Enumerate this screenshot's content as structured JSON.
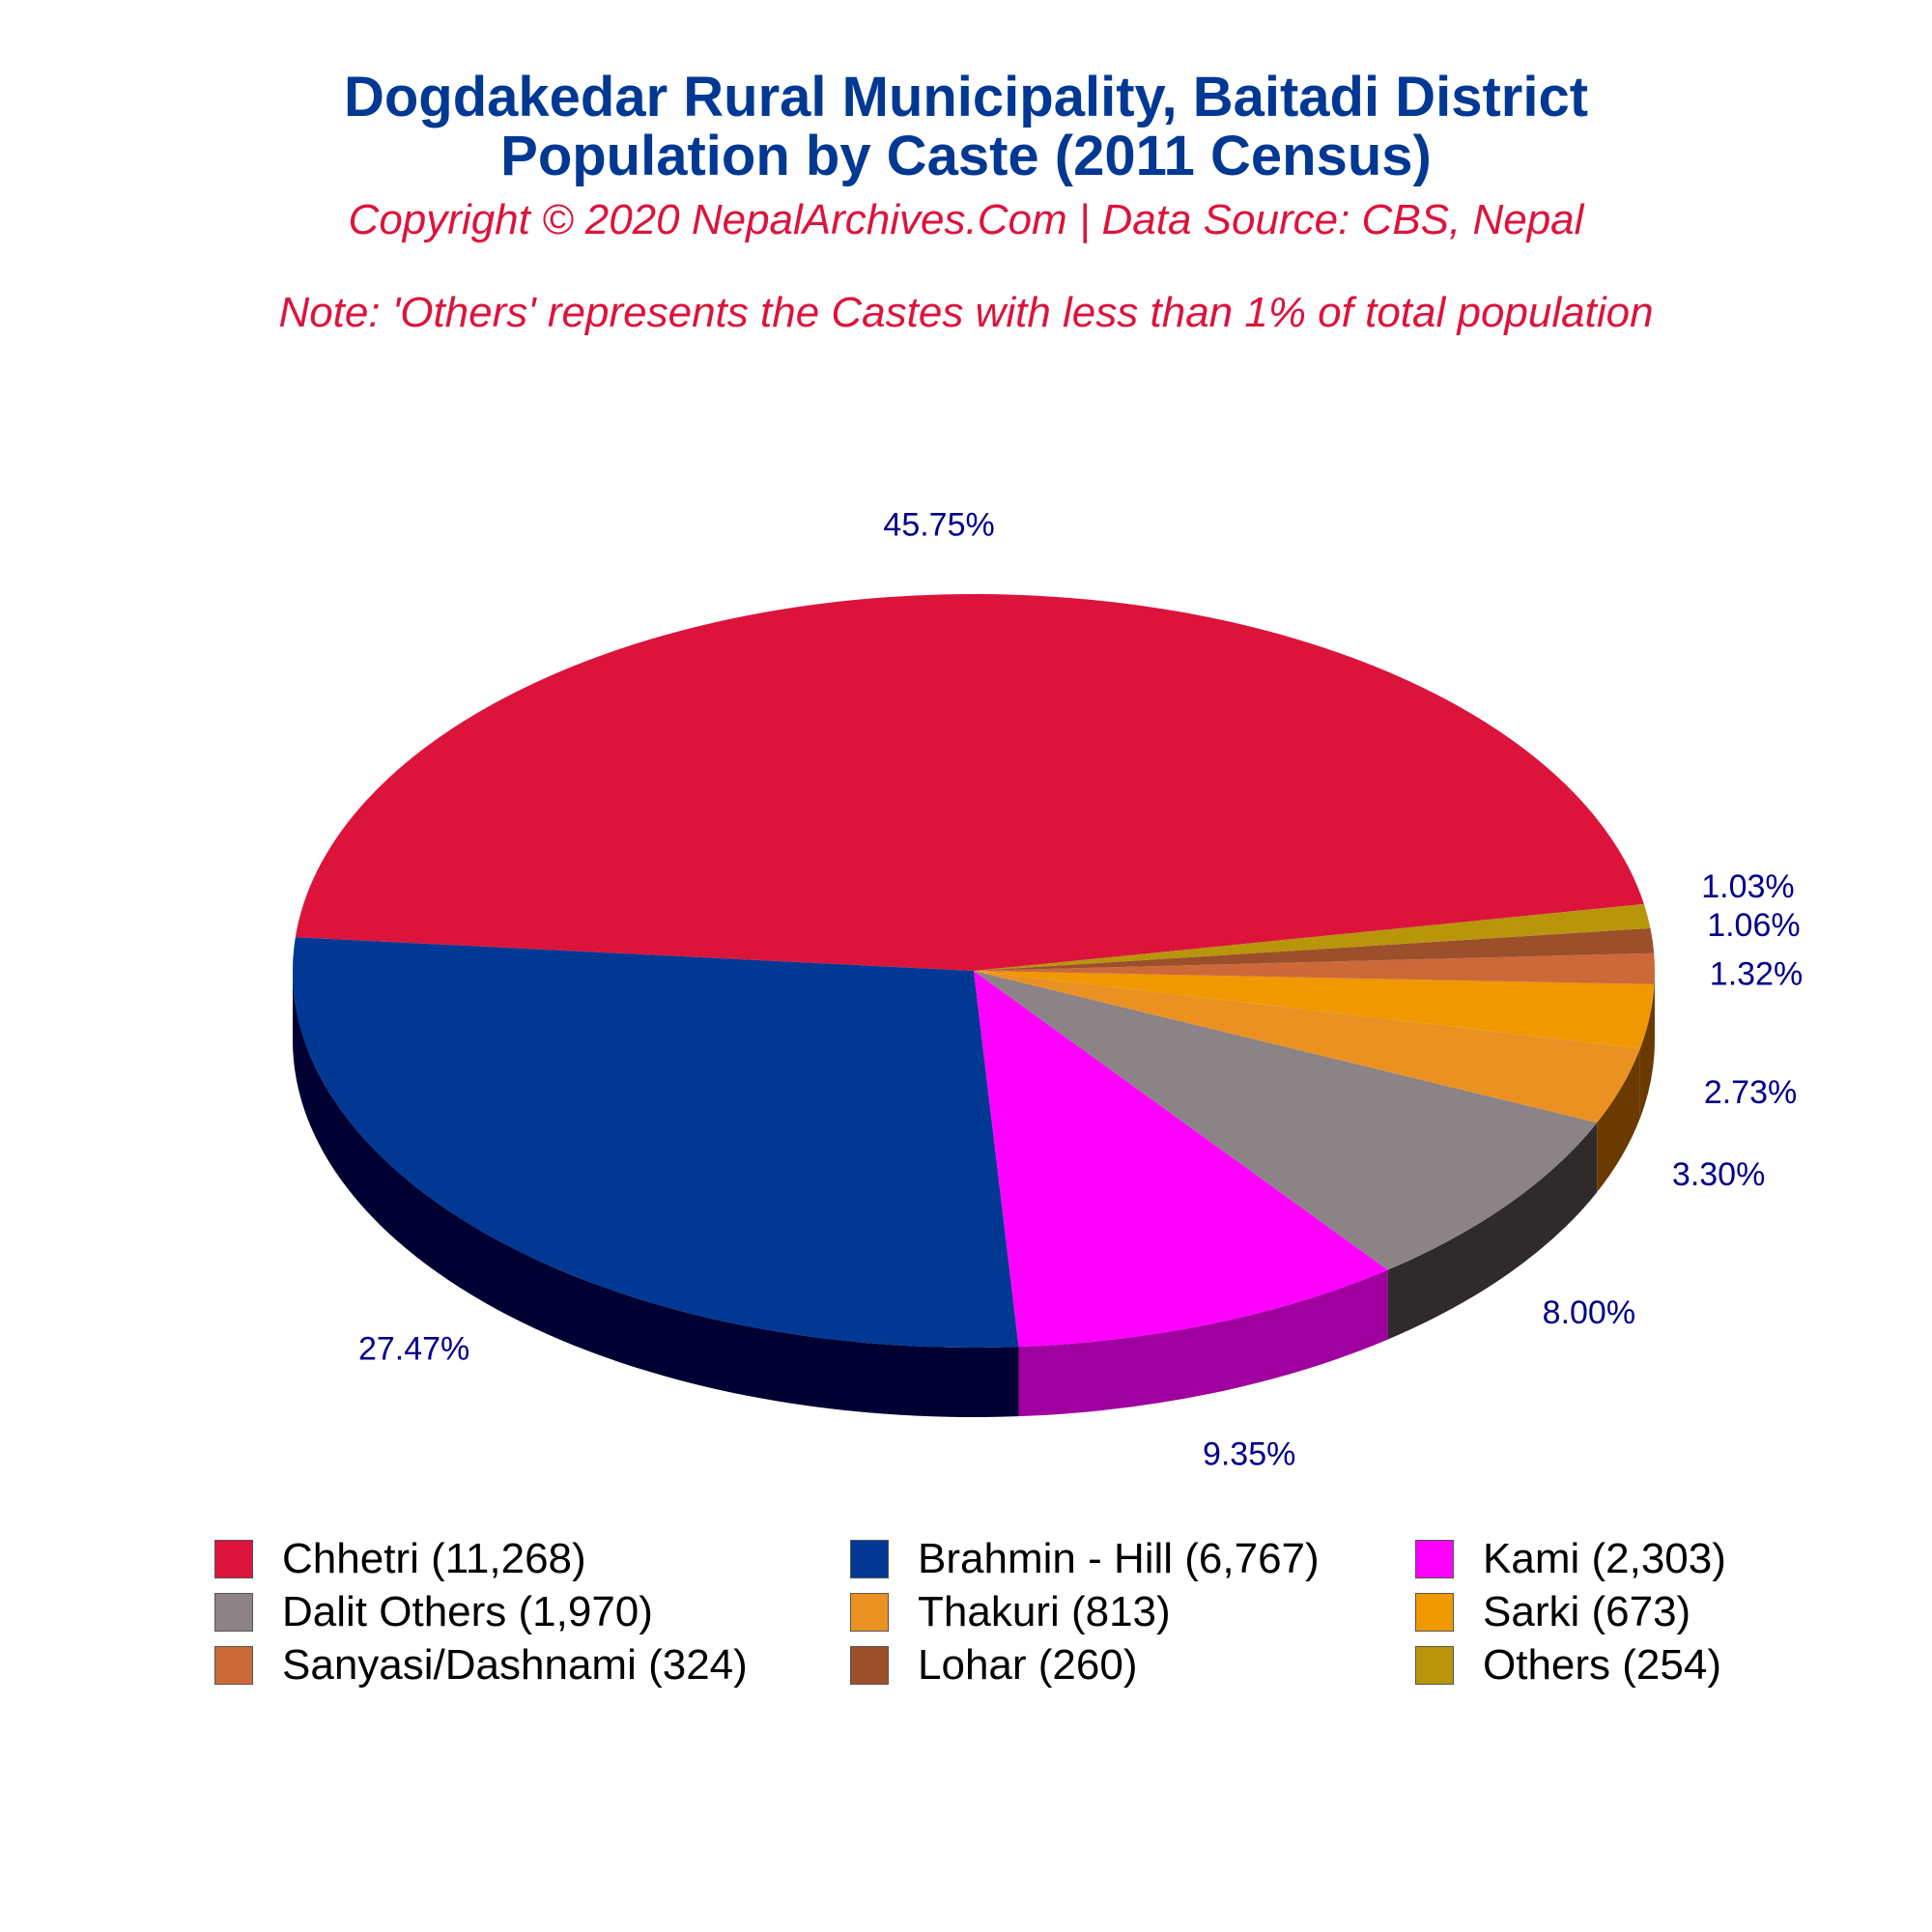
{
  "title_line1": "Dogdakedar Rural Municipality, Baitadi District",
  "title_line2": "Population by Caste (2011 Census)",
  "copyright": "Copyright © 2020 NepalArchives.Com | Data Source: CBS, Nepal",
  "note": "Note: 'Others' represents the Castes with less than 1% of total population",
  "chart_data": {
    "type": "pie",
    "style": "3d",
    "legend_position": "bottom",
    "categories": [
      "Chhetri",
      "Brahmin - Hill",
      "Kami",
      "Dalit Others",
      "Thakuri",
      "Sarki",
      "Sanyasi/Dashnami",
      "Lohar",
      "Others"
    ],
    "values": [
      11268,
      6767,
      2303,
      1970,
      813,
      673,
      324,
      260,
      254
    ],
    "percent_labels": [
      "45.75%",
      "27.47%",
      "9.35%",
      "8.00%",
      "3.30%",
      "2.73%",
      "1.32%",
      "1.06%",
      "1.03%"
    ],
    "legend_labels": [
      "Chhetri (11,268)",
      "Brahmin - Hill (6,767)",
      "Kami (2,303)",
      "Dalit Others (1,970)",
      "Thakuri (813)",
      "Sarki (673)",
      "Sanyasi/Dashnami (324)",
      "Lohar (260)",
      "Others (254)"
    ],
    "colors": [
      "#dc143c",
      "#003893",
      "#ff00ff",
      "#8b8386",
      "#eb9122",
      "#ef9800",
      "#cd6839",
      "#9c4f2b",
      "#b8950a"
    ],
    "side_colors": [
      "#7a0000",
      "#000033",
      "#a0009f",
      "#2f2a2b",
      "#6a3a00",
      "#6a3a00",
      "#5c2c10",
      "#4a2610",
      "#5a4800"
    ],
    "label_color": "#00008b"
  }
}
